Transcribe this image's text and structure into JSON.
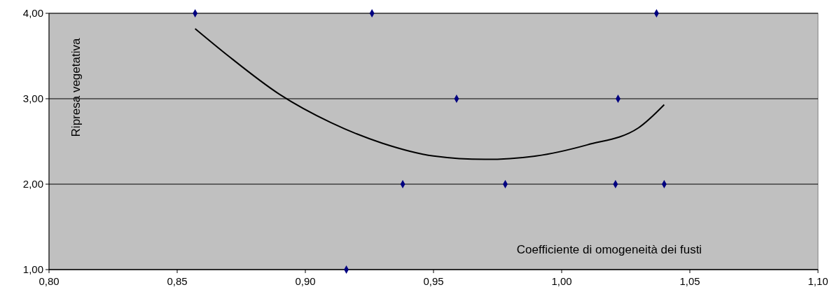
{
  "chart_data": {
    "type": "scatter",
    "xlabel": "Coefficiente di omogeneità dei fusti",
    "ylabel": "Ripresa vegetativa",
    "xlim": [
      0.8,
      1.1
    ],
    "ylim": [
      1,
      4
    ],
    "xticks": [
      {
        "value": 0.8,
        "label": "0,80"
      },
      {
        "value": 0.85,
        "label": "0,85"
      },
      {
        "value": 0.9,
        "label": "0,90"
      },
      {
        "value": 0.95,
        "label": "0,95"
      },
      {
        "value": 1.0,
        "label": "1,00"
      },
      {
        "value": 1.05,
        "label": "1,05"
      },
      {
        "value": 1.1,
        "label": "1,10"
      }
    ],
    "yticks": [
      {
        "value": 1,
        "label": "1,00"
      },
      {
        "value": 2,
        "label": "2,00"
      },
      {
        "value": 3,
        "label": "3,00"
      },
      {
        "value": 4,
        "label": "4,00"
      }
    ],
    "grid": "y",
    "series": [
      {
        "marker": "diamond",
        "color": "#000080",
        "x": [
          0.857,
          0.926,
          1.037,
          0.959,
          1.022,
          0.938,
          0.978,
          1.021,
          1.04,
          0.916
        ],
        "values": [
          4,
          4,
          4,
          3,
          3,
          2,
          2,
          2,
          2,
          1
        ]
      },
      {
        "type": "line",
        "color": "#000000",
        "line_style": "solid",
        "x": [
          0.857,
          0.87,
          0.89,
          0.91,
          0.93,
          0.95,
          0.97,
          0.99,
          1.01,
          1.03,
          1.04
        ],
        "values": [
          3.82,
          3.5,
          3.05,
          2.72,
          2.48,
          2.33,
          2.29,
          2.33,
          2.46,
          2.66,
          2.93
        ]
      }
    ]
  }
}
